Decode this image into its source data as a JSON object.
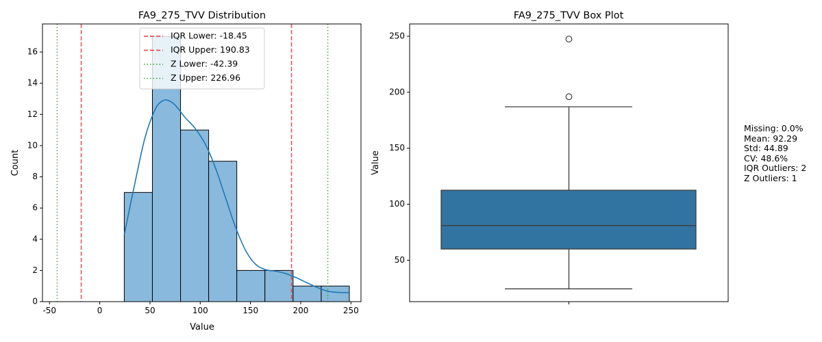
{
  "chart_data": [
    {
      "type": "histogram",
      "title": "FA9_275_TVV Distribution",
      "xlabel": "Value",
      "ylabel": "Count",
      "xlim": [
        -57,
        260
      ],
      "ylim": [
        0,
        17.8
      ],
      "xticks": [
        -50,
        0,
        50,
        100,
        150,
        200,
        250
      ],
      "yticks": [
        0,
        2,
        4,
        6,
        8,
        10,
        12,
        14,
        16
      ],
      "bin_edges": [
        24.4,
        52.4,
        80.4,
        108.4,
        136.4,
        164.4,
        192.4,
        220.4,
        248.4
      ],
      "counts": [
        7,
        17,
        11,
        9,
        2,
        2,
        1,
        1
      ],
      "kde": {
        "x": [
          24.4,
          35,
          45,
          55,
          62,
          68,
          75,
          85,
          95,
          105,
          115,
          125,
          135,
          145,
          155,
          165,
          175,
          185,
          195,
          205,
          215,
          225,
          235,
          248.4
        ],
        "y": [
          4.3,
          7.6,
          10.5,
          12.3,
          12.85,
          12.9,
          12.6,
          11.8,
          11.1,
          10.1,
          8.6,
          6.7,
          4.8,
          3.3,
          2.4,
          2.05,
          1.95,
          1.8,
          1.55,
          1.25,
          0.95,
          0.7,
          0.6,
          0.58
        ]
      },
      "lines": [
        {
          "label": "IQR Lower: -18.45",
          "x": -18.45,
          "color": "#e8383d",
          "style": "dashed"
        },
        {
          "label": "IQR Upper: 190.83",
          "x": 190.83,
          "color": "#e8383d",
          "style": "dashed"
        },
        {
          "label": "Z Lower: -42.39",
          "x": -42.39,
          "color": "#2ca02c",
          "style": "dotted"
        },
        {
          "label": "Z Upper: 226.96",
          "x": 226.96,
          "color": "#2ca02c",
          "style": "dotted"
        }
      ],
      "legend_position": "upper center",
      "colors": {
        "bar": "#89b9dc",
        "kde": "#1f77b4"
      }
    },
    {
      "type": "box",
      "title": "FA9_275_TVV Box Plot",
      "ylabel": "Value",
      "ylim": [
        13,
        261
      ],
      "yticks": [
        50,
        100,
        150,
        200,
        250
      ],
      "box": {
        "whisker_low": 24.4,
        "q1": 60.0,
        "median": 81.0,
        "q3": 112.5,
        "whisker_high": 187.0
      },
      "outliers": [
        196.0,
        247.5
      ],
      "colors": {
        "box": "#3274a1",
        "edge": "#3d3d3d"
      }
    }
  ],
  "stats": {
    "missing": "Missing: 0.0%",
    "mean": "Mean: 92.29",
    "std": "Std: 44.89",
    "cv": "CV: 48.6%",
    "iqr_outliers": "IQR Outliers: 2",
    "z_outliers": "Z Outliers: 1"
  }
}
